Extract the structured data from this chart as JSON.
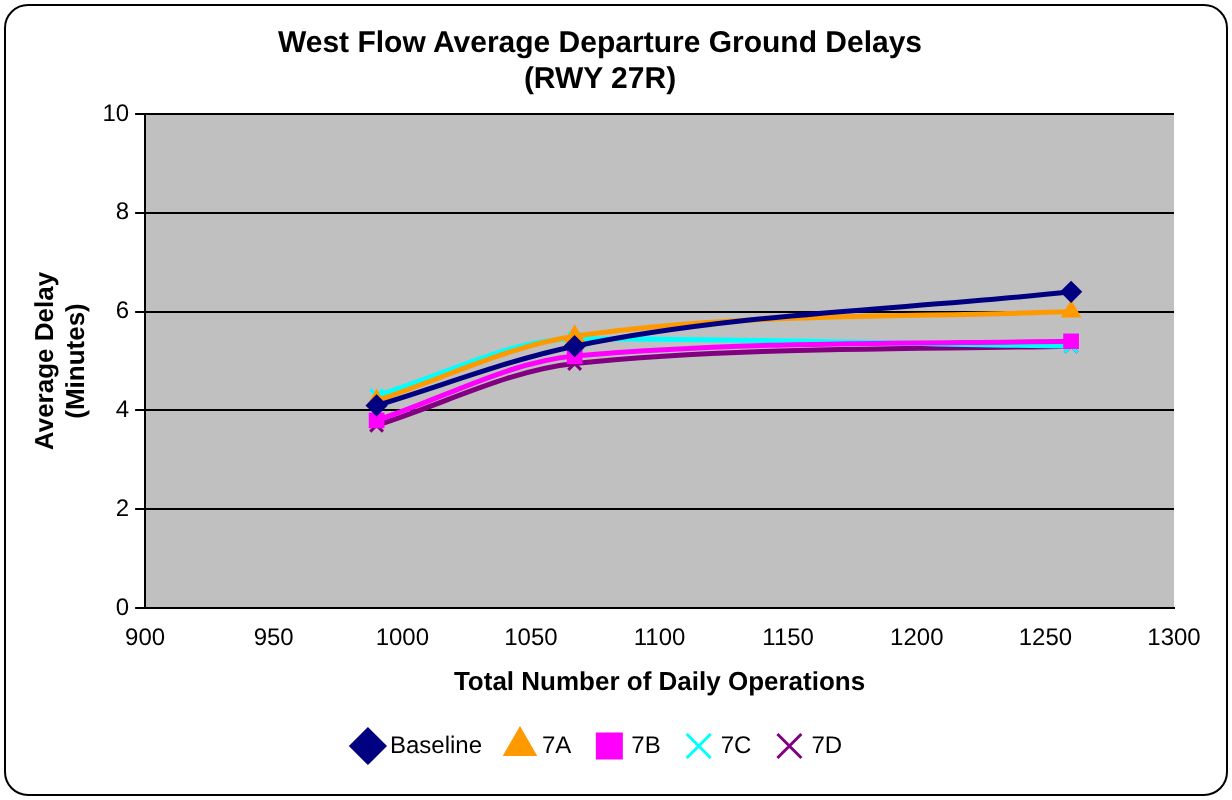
{
  "chart_data": {
    "type": "line",
    "title": "West Flow Average Departure Ground Delays\n(RWY 27R)",
    "xlabel": "Total Number of Daily Operations",
    "ylabel": "Average Delay\n(Minutes)",
    "x": [
      990,
      1067,
      1260
    ],
    "series": [
      {
        "name": "Baseline",
        "color": "#000080",
        "marker": "diamond",
        "values": [
          4.1,
          5.3,
          6.4
        ]
      },
      {
        "name": "7A",
        "color": "#ff9900",
        "marker": "triangle",
        "values": [
          4.2,
          5.5,
          6.0
        ]
      },
      {
        "name": "7B",
        "color": "#ff00ff",
        "marker": "square",
        "values": [
          3.8,
          5.1,
          5.4
        ]
      },
      {
        "name": "7C",
        "color": "#00ffff",
        "marker": "cross",
        "values": [
          4.3,
          5.45,
          5.3
        ]
      },
      {
        "name": "7D",
        "color": "#800080",
        "marker": "cross",
        "values": [
          3.7,
          4.95,
          5.3
        ]
      }
    ],
    "xlim": [
      900,
      1300
    ],
    "xticks": [
      900,
      950,
      1000,
      1050,
      1100,
      1150,
      1200,
      1250,
      1300
    ],
    "ylim": [
      0,
      10
    ],
    "yticks": [
      0,
      2,
      4,
      6,
      8,
      10
    ],
    "grid": "y",
    "legend": "bottom",
    "line_style": "solid"
  }
}
